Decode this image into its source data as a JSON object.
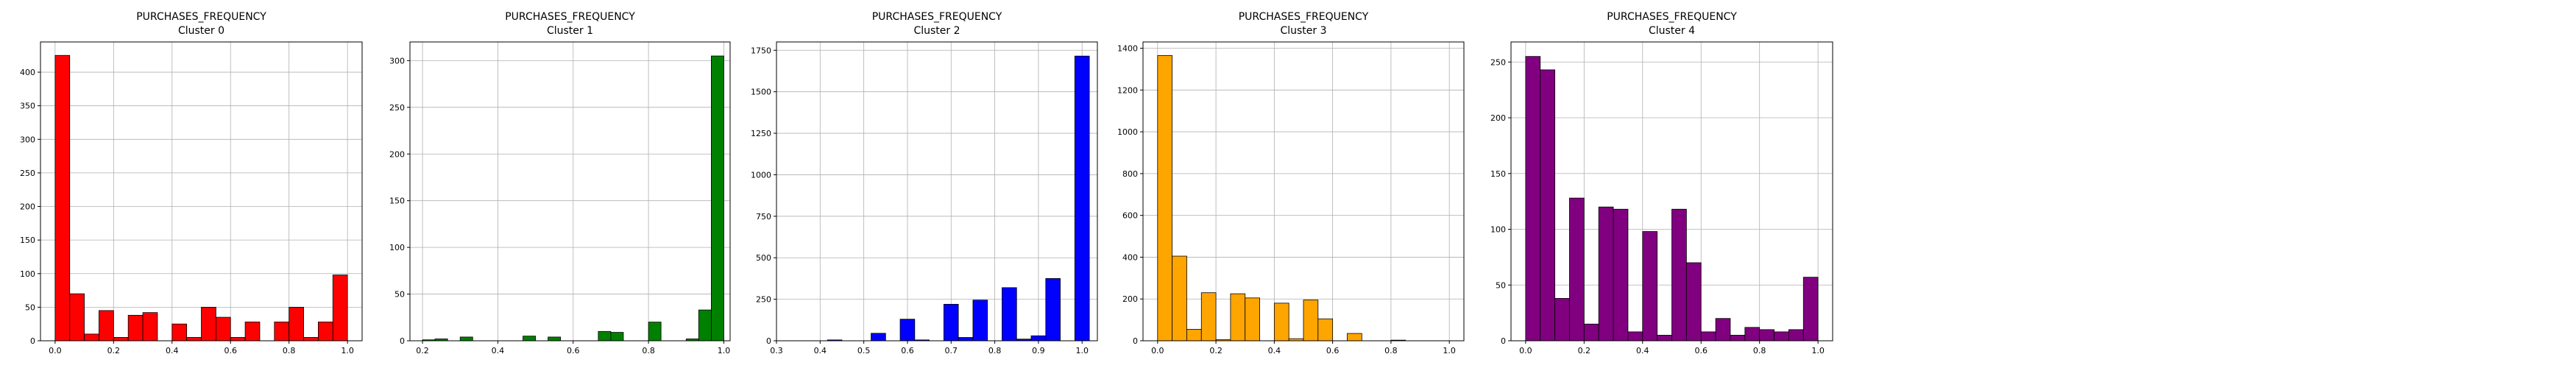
{
  "chart_data": [
    {
      "type": "bar",
      "title": "PURCHASES_FREQUENCY",
      "subtitle": "Cluster 0",
      "color": "#ff0000",
      "grid": true,
      "xlim": [
        -0.05,
        1.05
      ],
      "ylim": [
        0,
        445
      ],
      "xticks": [
        0.0,
        0.2,
        0.4,
        0.6,
        0.8,
        1.0
      ],
      "xtick_labels": [
        "0.0",
        "0.2",
        "0.4",
        "0.6",
        "0.8",
        "1.0"
      ],
      "yticks": [
        0,
        50,
        100,
        150,
        200,
        250,
        300,
        350,
        400
      ],
      "bin_width": 0.05,
      "bin_starts": [
        0,
        0.05,
        0.1,
        0.15,
        0.2,
        0.25,
        0.3,
        0.35,
        0.4,
        0.45,
        0.5,
        0.55,
        0.6,
        0.65,
        0.7,
        0.75,
        0.8,
        0.85,
        0.9,
        0.95
      ],
      "values": [
        425,
        70,
        10,
        45,
        5,
        38,
        42,
        0,
        25,
        5,
        50,
        35,
        5,
        28,
        0,
        28,
        50,
        5,
        28,
        98
      ]
    },
    {
      "type": "bar",
      "title": "PURCHASES_FREQUENCY",
      "subtitle": "Cluster 1",
      "color": "#008000",
      "grid": true,
      "xlim": [
        0.1667,
        1.0167
      ],
      "ylim": [
        0,
        320
      ],
      "xticks": [
        0.2,
        0.4,
        0.6,
        0.8,
        1.0
      ],
      "xtick_labels": [
        "0.2",
        "0.4",
        "0.6",
        "0.8",
        "1.0"
      ],
      "yticks": [
        0,
        50,
        100,
        150,
        200,
        250,
        300
      ],
      "bin_width": 0.0333,
      "bin_starts": [
        0.2,
        0.2333,
        0.2667,
        0.3,
        0.3333,
        0.3667,
        0.4,
        0.4333,
        0.4667,
        0.5,
        0.5333,
        0.5667,
        0.6,
        0.6333,
        0.6667,
        0.7,
        0.7333,
        0.7667,
        0.8,
        0.8333,
        0.8667,
        0.9,
        0.9333,
        0.9667
      ],
      "values": [
        1,
        2,
        0,
        4,
        0,
        0,
        0,
        0,
        5,
        0,
        4,
        0,
        0,
        0,
        10,
        9,
        0,
        0,
        20,
        0,
        0,
        2,
        33,
        305
      ]
    },
    {
      "type": "bar",
      "title": "PURCHASES_FREQUENCY",
      "subtitle": "Cluster 2",
      "color": "#0000ff",
      "grid": true,
      "xlim": [
        0.3,
        1.035
      ],
      "ylim": [
        0,
        1800
      ],
      "xticks": [
        0.3,
        0.4,
        0.5,
        0.6,
        0.7,
        0.8,
        0.9,
        1.0
      ],
      "xtick_labels": [
        "0.3",
        "0.4",
        "0.5",
        "0.6",
        "0.7",
        "0.8",
        "0.9",
        "1.0"
      ],
      "yticks": [
        0,
        250,
        500,
        750,
        1000,
        1250,
        1500,
        1750
      ],
      "bin_width": 0.0333,
      "bin_starts": [
        0.4167,
        0.45,
        0.4833,
        0.5167,
        0.55,
        0.5833,
        0.6167,
        0.65,
        0.6833,
        0.7167,
        0.75,
        0.7833,
        0.8167,
        0.85,
        0.8833,
        0.9167,
        0.95,
        0.9833
      ],
      "values": [
        5,
        0,
        0,
        45,
        0,
        130,
        5,
        0,
        220,
        20,
        245,
        0,
        320,
        10,
        30,
        375,
        0,
        1715
      ]
    },
    {
      "type": "bar",
      "title": "PURCHASES_FREQUENCY",
      "subtitle": "Cluster 3",
      "color": "#ffa500",
      "grid": true,
      "xlim": [
        -0.05,
        1.05
      ],
      "ylim": [
        0,
        1430
      ],
      "xticks": [
        0.0,
        0.2,
        0.4,
        0.6,
        0.8,
        1.0
      ],
      "xtick_labels": [
        "0.0",
        "0.2",
        "0.4",
        "0.6",
        "0.8",
        "1.0"
      ],
      "yticks": [
        0,
        200,
        400,
        600,
        800,
        1000,
        1200,
        1400
      ],
      "bin_width": 0.05,
      "bin_starts": [
        0,
        0.05,
        0.1,
        0.15,
        0.2,
        0.25,
        0.3,
        0.35,
        0.4,
        0.45,
        0.5,
        0.55,
        0.6,
        0.65,
        0.7,
        0.75,
        0.8,
        0.85
      ],
      "values": [
        1365,
        405,
        55,
        230,
        5,
        225,
        205,
        0,
        180,
        10,
        195,
        105,
        0,
        35,
        0,
        0,
        3,
        0
      ]
    },
    {
      "type": "bar",
      "title": "PURCHASES_FREQUENCY",
      "subtitle": "Cluster 4",
      "color": "#800080",
      "grid": true,
      "xlim": [
        -0.05,
        1.05
      ],
      "ylim": [
        0,
        268
      ],
      "xticks": [
        0.0,
        0.2,
        0.4,
        0.6,
        0.8,
        1.0
      ],
      "xtick_labels": [
        "0.0",
        "0.2",
        "0.4",
        "0.6",
        "0.8",
        "1.0"
      ],
      "yticks": [
        0,
        50,
        100,
        150,
        200,
        250
      ],
      "bin_width": 0.05,
      "bin_starts": [
        0,
        0.05,
        0.1,
        0.15,
        0.2,
        0.25,
        0.3,
        0.35,
        0.4,
        0.45,
        0.5,
        0.55,
        0.6,
        0.65,
        0.7,
        0.75,
        0.8,
        0.85,
        0.9,
        0.95
      ],
      "values": [
        255,
        243,
        38,
        128,
        15,
        120,
        118,
        8,
        98,
        5,
        118,
        70,
        8,
        20,
        5,
        12,
        10,
        8,
        10,
        57
      ]
    }
  ]
}
